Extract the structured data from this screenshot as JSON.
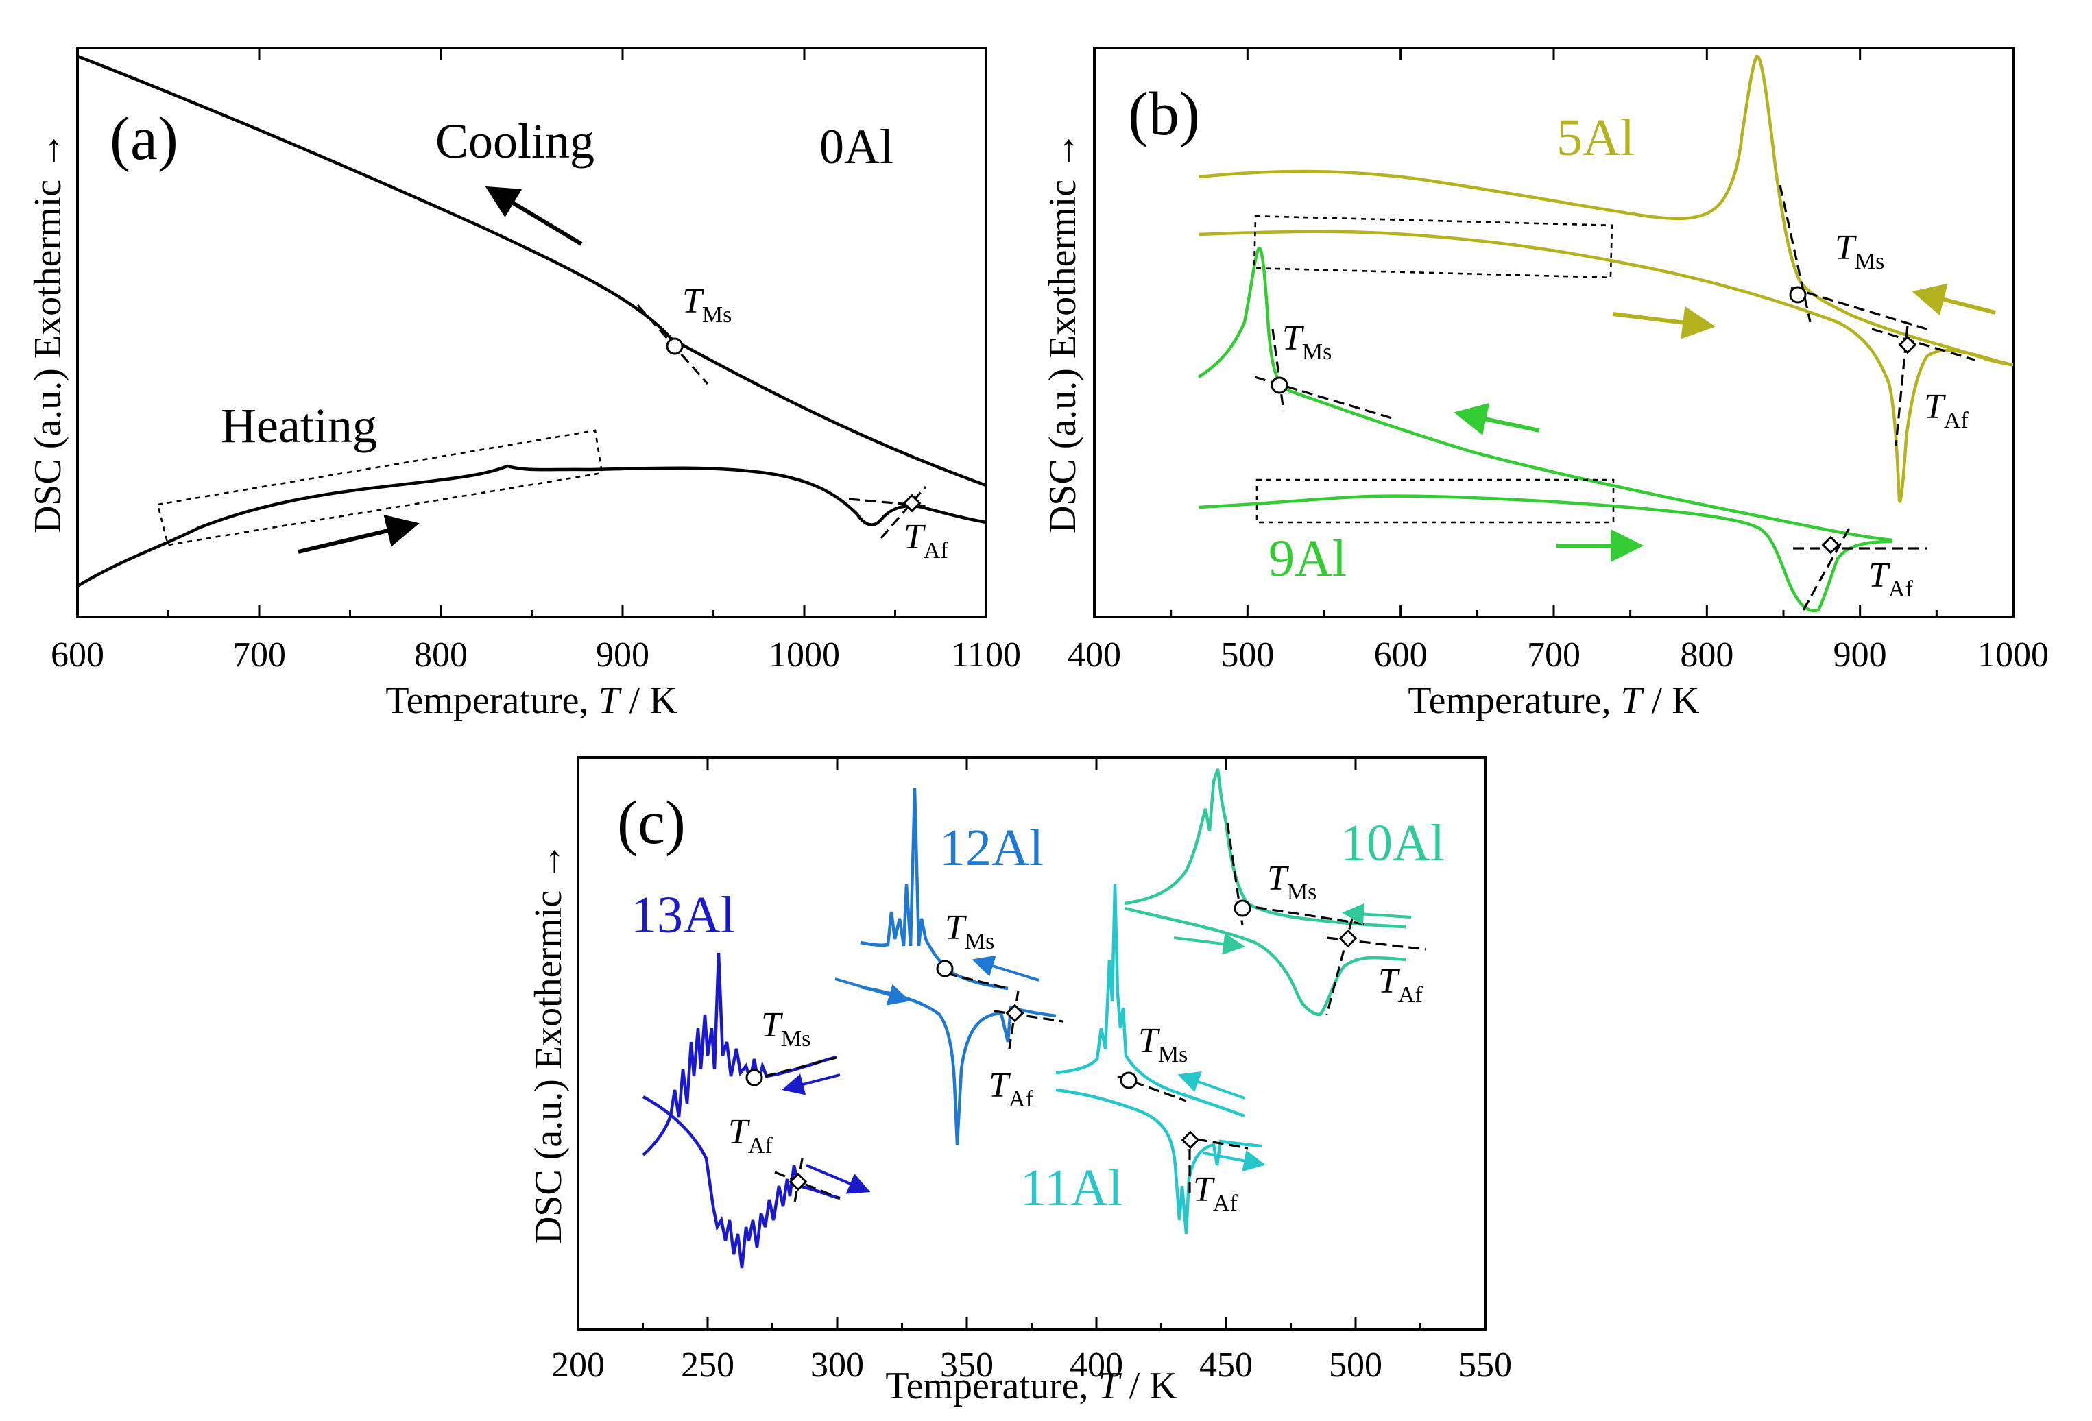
{
  "chart_data": [
    {
      "panel_label": "(a)",
      "type": "line",
      "xlabel_prefix": "Temperature, ",
      "xlabel_symbol": "T",
      "xlabel_suffix": " / K",
      "ylabel": "DSC (a.u.) Exothermic →",
      "xlim": [
        600,
        1100
      ],
      "xticks": [
        600,
        700,
        800,
        900,
        1000,
        1100
      ],
      "sample_label": "0Al",
      "annotations": {
        "cooling": "Cooling",
        "heating": "Heating"
      },
      "series": [
        {
          "name": "0Al cooling",
          "color": "#000000",
          "direction": "cooling",
          "x": [
            600,
            650,
            700,
            750,
            800,
            850,
            900,
            930,
            960,
            1000,
            1050,
            1100
          ],
          "y": [
            1.0,
            0.95,
            0.88,
            0.81,
            0.74,
            0.66,
            0.58,
            0.53,
            0.47,
            0.41,
            0.35,
            0.29
          ]
        },
        {
          "name": "0Al heating",
          "color": "#000000",
          "direction": "heating",
          "x": [
            600,
            650,
            700,
            750,
            800,
            835,
            850,
            900,
            950,
            1000,
            1030,
            1040,
            1050,
            1070,
            1100
          ],
          "y": [
            0.06,
            0.16,
            0.22,
            0.26,
            0.29,
            0.32,
            0.31,
            0.31,
            0.31,
            0.29,
            0.22,
            0.2,
            0.23,
            0.23,
            0.19
          ]
        }
      ],
      "transitions": [
        {
          "label": "T",
          "sub": "Ms",
          "x": 921,
          "series": "0Al cooling"
        },
        {
          "label": "T",
          "sub": "Af",
          "x": 1055,
          "series": "0Al heating"
        }
      ]
    },
    {
      "panel_label": "(b)",
      "type": "line",
      "xlabel_prefix": "Temperature, ",
      "xlabel_symbol": "T",
      "xlabel_suffix": " / K",
      "ylabel": "DSC (a.u.) Exothermic →",
      "xlim": [
        400,
        1000
      ],
      "xticks": [
        400,
        500,
        600,
        700,
        800,
        900,
        1000
      ],
      "series": [
        {
          "name": "5Al",
          "color": "#b5b21f",
          "x": [
            465,
            550,
            650,
            750,
            800,
            815,
            828,
            840,
            850,
            870,
            920,
            950,
            1000
          ],
          "y": [
            0.78,
            0.78,
            0.73,
            0.7,
            0.72,
            0.8,
            1.0,
            0.82,
            0.7,
            0.58,
            0.52,
            0.5,
            0.44
          ]
        },
        {
          "name": "5Al heating",
          "color": "#b5b21f",
          "x": [
            465,
            550,
            650,
            750,
            850,
            900,
            915,
            920,
            925,
            940,
            960,
            1000
          ],
          "y": [
            0.69,
            0.69,
            0.67,
            0.63,
            0.56,
            0.45,
            0.3,
            0.22,
            0.3,
            0.45,
            0.44,
            0.44
          ]
        },
        {
          "name": "9Al",
          "color": "#33cc33",
          "x": [
            465,
            495,
            508,
            515,
            525,
            600,
            700,
            800,
            900
          ],
          "y": [
            0.44,
            0.55,
            0.7,
            0.5,
            0.43,
            0.36,
            0.29,
            0.22,
            0.15
          ]
        },
        {
          "name": "9Al heating",
          "color": "#33cc33",
          "x": [
            465,
            550,
            650,
            750,
            820,
            850,
            870,
            880,
            900
          ],
          "y": [
            0.19,
            0.2,
            0.19,
            0.18,
            0.14,
            0.02,
            0.1,
            0.14,
            0.14
          ]
        }
      ],
      "transitions": [
        {
          "label": "T",
          "sub": "Ms",
          "x": 858,
          "series": "5Al"
        },
        {
          "label": "T",
          "sub": "Af",
          "x": 930,
          "series": "5Al heating"
        },
        {
          "label": "T",
          "sub": "Ms",
          "x": 521,
          "series": "9Al"
        },
        {
          "label": "T",
          "sub": "Af",
          "x": 880,
          "series": "9Al heating"
        }
      ]
    },
    {
      "panel_label": "(c)",
      "type": "line",
      "xlabel_prefix": "Temperature, ",
      "xlabel_symbol": "T",
      "xlabel_suffix": " / K",
      "ylabel": "DSC (a.u.) Exothermic →",
      "xlim": [
        200,
        550
      ],
      "xticks": [
        200,
        250,
        300,
        350,
        400,
        450,
        500,
        550
      ],
      "series": [
        {
          "name": "13Al",
          "color": "#1a1acc",
          "transitions": {
            "Ms": 264,
            "Af": 280
          }
        },
        {
          "name": "12Al",
          "color": "#1f78d1",
          "transitions": {
            "Ms": 336,
            "Af": 362
          }
        },
        {
          "name": "11Al",
          "color": "#26c7cc",
          "transitions": {
            "Ms": 406,
            "Af": 428
          }
        },
        {
          "name": "10Al",
          "color": "#2fc99a",
          "transitions": {
            "Ms": 450,
            "Af": 490
          }
        }
      ]
    }
  ],
  "colors": {
    "black": "#000000",
    "al5": "#b5b21f",
    "al9": "#33cc33",
    "al10": "#2fc99a",
    "al11": "#26c7cc",
    "al12": "#1f78d1",
    "al13": "#1a1acc"
  }
}
